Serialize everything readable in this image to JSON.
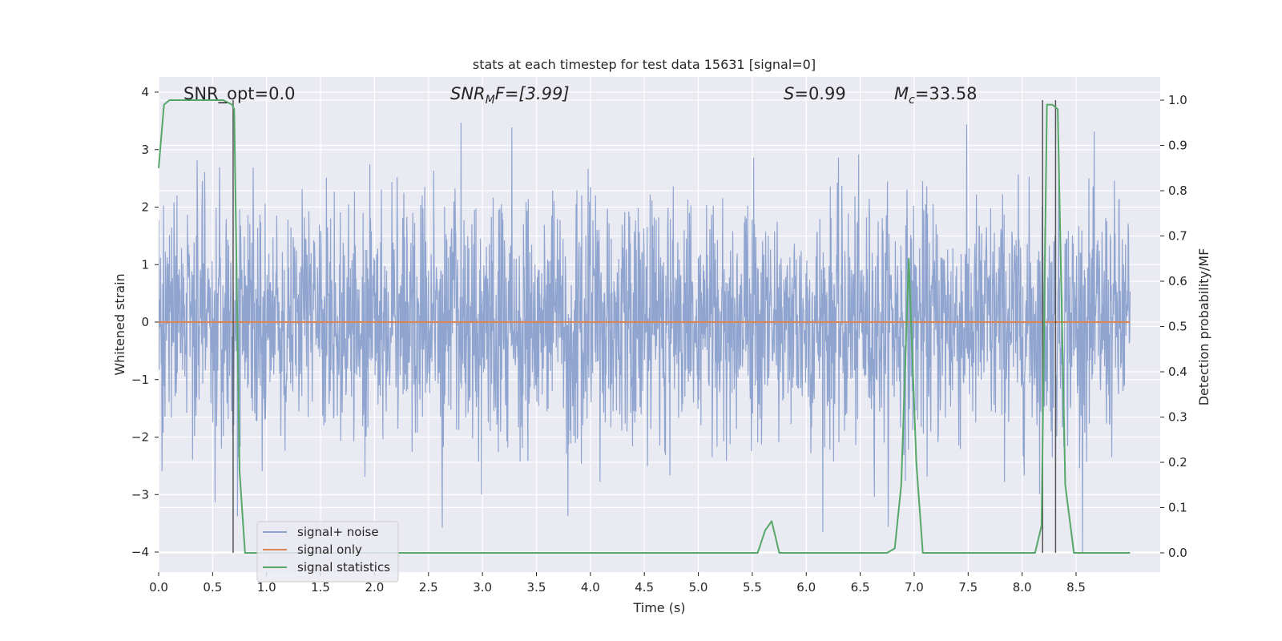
{
  "chart_data": {
    "type": "line",
    "title": "stats at each timestep for test data 15631 [signal=0]",
    "xlabel": "Time (s)",
    "ylabel": "Whitened strain",
    "y2label": "Detection probability/MF",
    "xlim": [
      0.0,
      9.0
    ],
    "ylim": [
      -4.4,
      4.2
    ],
    "y2lim": [
      -0.047,
      1.047
    ],
    "x_ticks": [
      "0.0",
      "0.5",
      "1.0",
      "1.5",
      "2.0",
      "2.5",
      "3.0",
      "3.5",
      "4.0",
      "4.5",
      "5.0",
      "5.5",
      "6.0",
      "6.5",
      "7.0",
      "7.5",
      "8.0",
      "8.5"
    ],
    "y_ticks": [
      "4",
      "3",
      "2",
      "1",
      "0",
      "−1",
      "−2",
      "−3",
      "−4"
    ],
    "y2_ticks": [
      "1.0",
      "0.9",
      "0.8",
      "0.7",
      "0.6",
      "0.5",
      "0.4",
      "0.3",
      "0.2",
      "0.1",
      "0.0"
    ],
    "grid": true,
    "legend_position": "lower-left",
    "annotations": {
      "snr_opt": "SNR_opt=0.0",
      "snr_mf_main": "SNR",
      "snr_mf_sub": "M",
      "snr_mf_rest": "F=[3.99]",
      "s_var": "S",
      "s_val": "=0.99",
      "mc_var": "M",
      "mc_sub": "c",
      "mc_val": "=33.58"
    },
    "series": [
      {
        "name": "signal+ noise",
        "color": "#8fa4cf",
        "description_values": "noise ~ N(0,1.1), amplitude mostly within ±2.5, extremes ~ +3.8 and −4.0",
        "seed": 15631
      },
      {
        "name": "signal only",
        "color": "#dd8452",
        "x": [
          0.0,
          9.0
        ],
        "y": [
          0.0,
          0.0
        ]
      },
      {
        "name": "signal statistics",
        "color": "#55a868",
        "axis": "right",
        "x": [
          0.0,
          0.05,
          0.1,
          0.6,
          0.68,
          0.7,
          0.75,
          0.8,
          5.55,
          5.62,
          5.68,
          5.75,
          6.75,
          6.82,
          6.88,
          6.95,
          7.02,
          7.08,
          8.12,
          8.18,
          8.23,
          8.28,
          8.33,
          8.4,
          8.48,
          9.0
        ],
        "y": [
          0.85,
          0.99,
          1.0,
          1.0,
          0.99,
          0.98,
          0.18,
          0.0,
          0.0,
          0.05,
          0.07,
          0.0,
          0.0,
          0.01,
          0.15,
          0.65,
          0.2,
          0.0,
          0.0,
          0.06,
          0.99,
          0.99,
          0.98,
          0.15,
          0.0,
          0.0
        ]
      }
    ],
    "vertical_markers": {
      "color": "#555555",
      "x": [
        0.69,
        8.19,
        8.31
      ]
    }
  },
  "legend": {
    "items": [
      {
        "label": "signal+ noise",
        "color": "#8fa4cf"
      },
      {
        "label": "signal only",
        "color": "#dd8452"
      },
      {
        "label": "signal statistics",
        "color": "#55a868"
      }
    ]
  }
}
